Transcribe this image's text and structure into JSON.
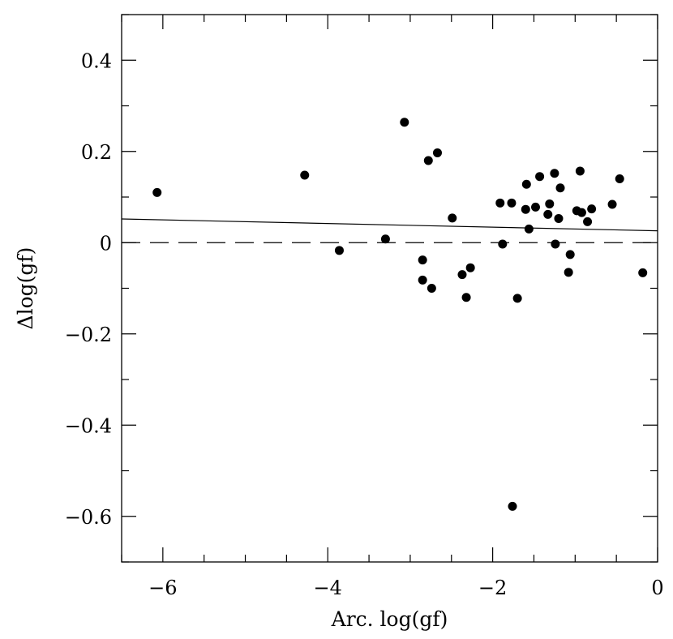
{
  "chart_data": {
    "type": "scatter",
    "title": "",
    "xlabel": "Arc. log(gf)",
    "ylabel": "Δlog(gf)",
    "xlim": [
      -6.5,
      0
    ],
    "ylim": [
      -0.7,
      0.5
    ],
    "grid": false,
    "x_major_ticks": [
      -6,
      -4,
      -2,
      0
    ],
    "x_tick_labels": [
      "−6",
      "−4",
      "−2",
      "0"
    ],
    "x_minor_step": 0.5,
    "y_major_ticks": [
      0.4,
      0.2,
      0,
      -0.2,
      -0.4,
      -0.6
    ],
    "y_tick_labels": [
      "0.4",
      "0.2",
      "0",
      "−0.2",
      "−0.4",
      "−0.6"
    ],
    "y_minor_step": 0.1,
    "points": [
      {
        "x": -6.07,
        "y": 0.11
      },
      {
        "x": -4.28,
        "y": 0.148
      },
      {
        "x": -3.86,
        "y": -0.017
      },
      {
        "x": -3.3,
        "y": 0.008
      },
      {
        "x": -3.07,
        "y": 0.264
      },
      {
        "x": -2.85,
        "y": -0.038
      },
      {
        "x": -2.85,
        "y": -0.082
      },
      {
        "x": -2.78,
        "y": 0.18
      },
      {
        "x": -2.74,
        "y": -0.1
      },
      {
        "x": -2.67,
        "y": 0.197
      },
      {
        "x": -2.49,
        "y": 0.054
      },
      {
        "x": -2.37,
        "y": -0.07
      },
      {
        "x": -2.32,
        "y": -0.12
      },
      {
        "x": -2.27,
        "y": -0.055
      },
      {
        "x": -1.91,
        "y": 0.087
      },
      {
        "x": -1.88,
        "y": -0.003
      },
      {
        "x": -1.77,
        "y": 0.087
      },
      {
        "x": -1.76,
        "y": -0.578
      },
      {
        "x": -1.7,
        "y": -0.122
      },
      {
        "x": -1.6,
        "y": 0.073
      },
      {
        "x": -1.59,
        "y": 0.128
      },
      {
        "x": -1.56,
        "y": 0.03
      },
      {
        "x": -1.48,
        "y": 0.078
      },
      {
        "x": -1.43,
        "y": 0.145
      },
      {
        "x": -1.33,
        "y": 0.062
      },
      {
        "x": -1.31,
        "y": 0.085
      },
      {
        "x": -1.25,
        "y": 0.152
      },
      {
        "x": -1.24,
        "y": -0.003
      },
      {
        "x": -1.2,
        "y": 0.053
      },
      {
        "x": -1.18,
        "y": 0.12
      },
      {
        "x": -1.08,
        "y": -0.065
      },
      {
        "x": -1.06,
        "y": -0.026
      },
      {
        "x": -0.98,
        "y": 0.07
      },
      {
        "x": -0.94,
        "y": 0.157
      },
      {
        "x": -0.92,
        "y": 0.066
      },
      {
        "x": -0.85,
        "y": 0.046
      },
      {
        "x": -0.8,
        "y": 0.074
      },
      {
        "x": -0.55,
        "y": 0.084
      },
      {
        "x": -0.46,
        "y": 0.14
      },
      {
        "x": -0.18,
        "y": -0.066
      }
    ],
    "fit_line": {
      "x": [
        -6.5,
        0
      ],
      "y": [
        0.052,
        0.026
      ],
      "style": "solid"
    },
    "reference_line": {
      "y": 0,
      "style": "dashed"
    },
    "colors": {
      "marker": "#000000",
      "axis": "#000000",
      "background": "#ffffff"
    }
  }
}
